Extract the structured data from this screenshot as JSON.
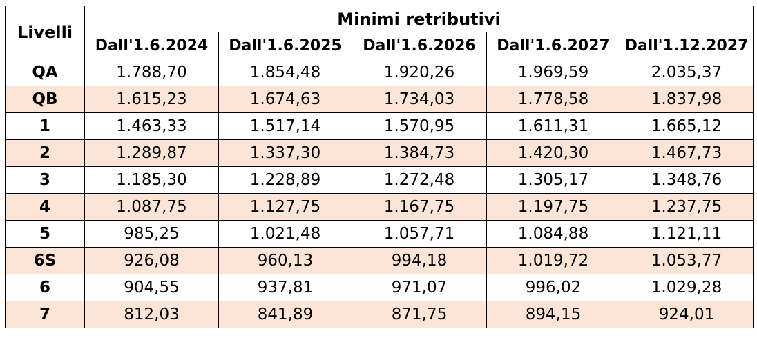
{
  "table": {
    "row_header_label": "Livelli",
    "group_header": "Minimi retributivi",
    "columns": [
      "Dall'1.6.2024",
      "Dall'1.6.2025",
      "Dall'1.6.2026",
      "Dall'1.6.2027",
      "Dall'1.12.2027"
    ],
    "rows": [
      {
        "level": "QA",
        "values": [
          "1.788,70",
          "1.854,48",
          "1.920,26",
          "1.969,59",
          "2.035,37"
        ]
      },
      {
        "level": "QB",
        "values": [
          "1.615,23",
          "1.674,63",
          "1.734,03",
          "1.778,58",
          "1.837,98"
        ]
      },
      {
        "level": "1",
        "values": [
          "1.463,33",
          "1.517,14",
          "1.570,95",
          "1.611,31",
          "1.665,12"
        ]
      },
      {
        "level": "2",
        "values": [
          "1.289,87",
          "1.337,30",
          "1.384,73",
          "1.420,30",
          "1.467,73"
        ]
      },
      {
        "level": "3",
        "values": [
          "1.185,30",
          "1.228,89",
          "1.272,48",
          "1.305,17",
          "1.348,76"
        ]
      },
      {
        "level": "4",
        "values": [
          "1.087,75",
          "1.127,75",
          "1.167,75",
          "1.197,75",
          "1.237,75"
        ]
      },
      {
        "level": "5",
        "values": [
          "985,25",
          "1.021,48",
          "1.057,71",
          "1.084,88",
          "1.121,11"
        ]
      },
      {
        "level": "6S",
        "values": [
          "926,08",
          "960,13",
          "994,18",
          "1.019,72",
          "1.053,77"
        ]
      },
      {
        "level": "6",
        "values": [
          "904,55",
          "937,81",
          "971,07",
          "996,02",
          "1.029,28"
        ]
      },
      {
        "level": "7",
        "values": [
          "812,03",
          "841,89",
          "871,75",
          "894,15",
          "924,01"
        ]
      }
    ]
  },
  "colors": {
    "shaded_row": "#fce4d6",
    "border": "#000000"
  }
}
